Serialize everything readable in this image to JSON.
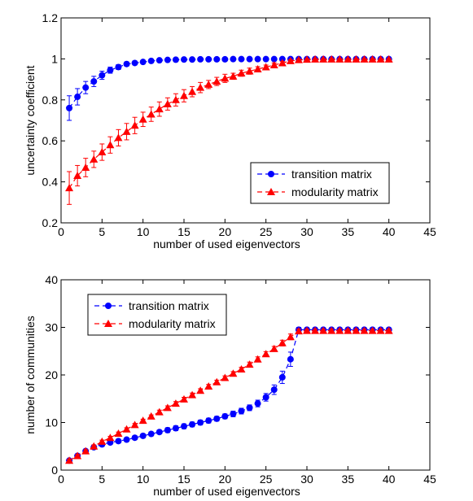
{
  "chart_data": [
    {
      "type": "line",
      "xlabel": "number of used eigenvectors",
      "ylabel": "uncertainty coefficient",
      "xlim": [
        0,
        45
      ],
      "ylim": [
        0.2,
        1.2
      ],
      "xticks": [
        "0",
        "5",
        "10",
        "15",
        "20",
        "25",
        "30",
        "35",
        "40",
        "45"
      ],
      "yticks": [
        "0.2",
        "0.4",
        "0.6",
        "0.8",
        "1",
        "1.2"
      ],
      "grid": false,
      "legend_position": "lower-right",
      "x": [
        1,
        2,
        3,
        4,
        5,
        6,
        7,
        8,
        9,
        10,
        11,
        12,
        13,
        14,
        15,
        16,
        17,
        18,
        19,
        20,
        21,
        22,
        23,
        24,
        25,
        26,
        27,
        28,
        29,
        30,
        31,
        32,
        33,
        34,
        35,
        36,
        37,
        38,
        39,
        40
      ],
      "series": [
        {
          "name": "transition matrix",
          "color": "#0000ff",
          "marker": "circle",
          "values": [
            0.76,
            0.815,
            0.86,
            0.89,
            0.92,
            0.945,
            0.96,
            0.975,
            0.98,
            0.985,
            0.99,
            0.993,
            0.995,
            0.996,
            0.997,
            0.997,
            0.998,
            0.998,
            0.998,
            0.998,
            0.999,
            0.999,
            0.999,
            0.999,
            0.999,
            0.999,
            0.999,
            0.999,
            0.999,
            0.999,
            0.999,
            0.999,
            0.999,
            0.999,
            0.999,
            0.999,
            0.999,
            0.999,
            0.999,
            0.999
          ],
          "errors": [
            0.06,
            0.04,
            0.03,
            0.025,
            0.02,
            0.015,
            0.012,
            0.01,
            0.008,
            0.006,
            0.005,
            0.004,
            0.003,
            0.003,
            0.002,
            0.002,
            0.002,
            0.002,
            0.002,
            0.002,
            0.002,
            0.002,
            0.002,
            0.002,
            0.002,
            0.002,
            0.002,
            0.002,
            0.002,
            0.002,
            0.002,
            0.002,
            0.002,
            0.002,
            0.002,
            0.002,
            0.002,
            0.002,
            0.002,
            0.002
          ]
        },
        {
          "name": "modularity matrix",
          "color": "#ff0000",
          "marker": "triangle",
          "values": [
            0.37,
            0.43,
            0.47,
            0.51,
            0.545,
            0.58,
            0.615,
            0.645,
            0.675,
            0.705,
            0.73,
            0.755,
            0.78,
            0.8,
            0.82,
            0.84,
            0.86,
            0.875,
            0.89,
            0.905,
            0.915,
            0.93,
            0.94,
            0.95,
            0.96,
            0.97,
            0.98,
            0.99,
            0.995,
            0.997,
            0.998,
            0.998,
            0.998,
            0.998,
            0.998,
            0.998,
            0.998,
            0.998,
            0.998,
            0.998
          ],
          "errors": [
            0.08,
            0.05,
            0.045,
            0.04,
            0.04,
            0.04,
            0.04,
            0.04,
            0.04,
            0.035,
            0.035,
            0.035,
            0.03,
            0.03,
            0.03,
            0.025,
            0.025,
            0.02,
            0.02,
            0.02,
            0.015,
            0.015,
            0.015,
            0.012,
            0.01,
            0.01,
            0.008,
            0.006,
            0.004,
            0.003,
            0.003,
            0.003,
            0.003,
            0.003,
            0.003,
            0.003,
            0.003,
            0.003,
            0.003,
            0.003
          ]
        }
      ]
    },
    {
      "type": "line",
      "xlabel": "number of used eigenvectors",
      "ylabel": "number of communities",
      "xlim": [
        0,
        45
      ],
      "ylim": [
        0,
        40
      ],
      "xticks": [
        "0",
        "5",
        "10",
        "15",
        "20",
        "25",
        "30",
        "35",
        "40",
        "45"
      ],
      "yticks": [
        "0",
        "10",
        "20",
        "30",
        "40"
      ],
      "grid": false,
      "legend_position": "upper-left",
      "x": [
        1,
        2,
        3,
        4,
        5,
        6,
        7,
        8,
        9,
        10,
        11,
        12,
        13,
        14,
        15,
        16,
        17,
        18,
        19,
        20,
        21,
        22,
        23,
        24,
        25,
        26,
        27,
        28,
        29,
        30,
        31,
        32,
        33,
        34,
        35,
        36,
        37,
        38,
        39,
        40
      ],
      "series": [
        {
          "name": "transition matrix",
          "color": "#0000ff",
          "marker": "circle",
          "values": [
            2,
            3,
            4,
            4.8,
            5.4,
            5.8,
            6.1,
            6.4,
            6.8,
            7.2,
            7.6,
            8.0,
            8.4,
            8.8,
            9.2,
            9.6,
            10.0,
            10.4,
            10.8,
            11.3,
            11.8,
            12.4,
            13.1,
            14.0,
            15.3,
            16.9,
            19.5,
            23.3,
            29.5,
            29.5,
            29.5,
            29.5,
            29.5,
            29.5,
            29.5,
            29.5,
            29.5,
            29.5,
            29.5,
            29.5
          ],
          "errors": [
            0.3,
            0.3,
            0.3,
            0.4,
            0.4,
            0.4,
            0.4,
            0.4,
            0.4,
            0.4,
            0.4,
            0.4,
            0.5,
            0.5,
            0.5,
            0.5,
            0.5,
            0.5,
            0.5,
            0.5,
            0.6,
            0.6,
            0.6,
            0.7,
            0.8,
            1.0,
            1.3,
            1.5,
            0.5,
            0.4,
            0.4,
            0.4,
            0.4,
            0.4,
            0.4,
            0.4,
            0.4,
            0.4,
            0.4,
            0.4
          ]
        },
        {
          "name": "modularity matrix",
          "color": "#ff0000",
          "marker": "triangle",
          "values": [
            2,
            3,
            4,
            5,
            6,
            6.8,
            7.7,
            8.6,
            9.5,
            10.4,
            11.3,
            12.2,
            13.1,
            14.0,
            14.9,
            15.8,
            16.7,
            17.6,
            18.5,
            19.4,
            20.3,
            21.2,
            22.2,
            23.3,
            24.4,
            25.5,
            26.7,
            28.0,
            29.2,
            29.3,
            29.3,
            29.3,
            29.3,
            29.3,
            29.3,
            29.3,
            29.3,
            29.3,
            29.3,
            29.3
          ],
          "errors": [
            0.3,
            0.3,
            0.3,
            0.3,
            0.3,
            0.3,
            0.3,
            0.3,
            0.3,
            0.3,
            0.3,
            0.4,
            0.4,
            0.4,
            0.4,
            0.4,
            0.4,
            0.4,
            0.4,
            0.4,
            0.4,
            0.4,
            0.5,
            0.5,
            0.5,
            0.5,
            0.6,
            0.6,
            0.4,
            0.3,
            0.3,
            0.3,
            0.3,
            0.3,
            0.3,
            0.3,
            0.3,
            0.3,
            0.3,
            0.3
          ]
        }
      ]
    }
  ]
}
